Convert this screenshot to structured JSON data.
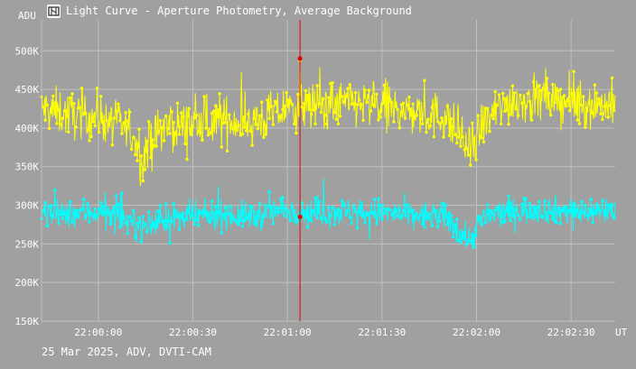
{
  "window": {
    "title": "Light Curve - Aperture Photometry, Average Background",
    "footer": "25 Mar 2025, ADV, DVTI-CAM",
    "icon": "film-camera-icon"
  },
  "colors": {
    "background": "#a0a0a0",
    "grid": "#c0c0c0",
    "series_primary": "#ffff00",
    "series_secondary": "#00ffff",
    "cursor": "#e00000"
  },
  "chart_data": {
    "type": "line",
    "ylabel": "ADU",
    "xunit": "UT",
    "ylim": [
      150000,
      540000
    ],
    "yticks": [
      {
        "value": 150000,
        "label": "150K"
      },
      {
        "value": 200000,
        "label": "200K"
      },
      {
        "value": 250000,
        "label": "250K"
      },
      {
        "value": 300000,
        "label": "300K"
      },
      {
        "value": 350000,
        "label": "350K"
      },
      {
        "value": 400000,
        "label": "400K"
      },
      {
        "value": 450000,
        "label": "450K"
      },
      {
        "value": 500000,
        "label": "500K"
      }
    ],
    "xlim": [
      "21:59:42",
      "22:02:44"
    ],
    "xticks": [
      "22:00:00",
      "22:00:30",
      "22:01:00",
      "22:01:30",
      "22:02:00",
      "22:02:30"
    ],
    "grid": true,
    "cursor": {
      "x": "22:01:04",
      "values": [
        490000,
        285000
      ]
    },
    "series": [
      {
        "color": "#ffff00",
        "x": [
          "21:59:42",
          "21:59:50",
          "22:00:00",
          "22:00:10",
          "22:00:14",
          "22:00:20",
          "22:00:30",
          "22:00:40",
          "22:00:50",
          "22:01:00",
          "22:01:10",
          "22:01:20",
          "22:01:30",
          "22:01:40",
          "22:01:50",
          "22:01:58",
          "22:02:02",
          "22:02:10",
          "22:02:20",
          "22:02:30",
          "22:02:44"
        ],
        "y": [
          425000,
          418000,
          415000,
          398000,
          365000,
          400000,
          405000,
          410000,
          408000,
          425000,
          430000,
          432000,
          428000,
          420000,
          415000,
          370000,
          405000,
          435000,
          438000,
          432000,
          430000
        ],
        "noise": 30000
      },
      {
        "color": "#00ffff",
        "x": [
          "21:59:42",
          "21:59:50",
          "22:00:00",
          "22:00:10",
          "22:00:14",
          "22:00:20",
          "22:00:30",
          "22:00:40",
          "22:00:50",
          "22:01:00",
          "22:01:10",
          "22:01:20",
          "22:01:30",
          "22:01:40",
          "22:01:50",
          "22:01:58",
          "22:02:02",
          "22:02:10",
          "22:02:20",
          "22:02:30",
          "22:02:44"
        ],
        "y": [
          290000,
          288000,
          292000,
          280000,
          270000,
          282000,
          285000,
          288000,
          286000,
          295000,
          290000,
          292000,
          290000,
          287000,
          285000,
          255000,
          283000,
          292000,
          295000,
          292000,
          293000
        ],
        "noise": 18000
      }
    ]
  }
}
